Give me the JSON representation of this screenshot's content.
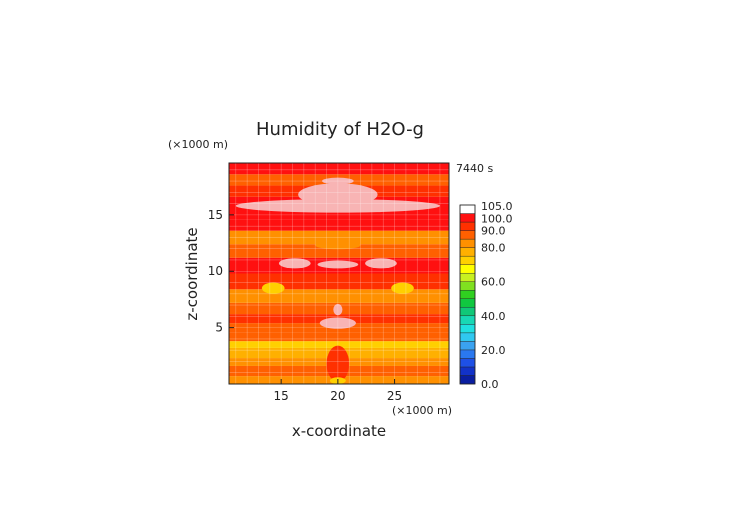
{
  "chart_data": {
    "type": "heatmap",
    "title": "Humidity of H2O-g",
    "xlabel": "x-coordinate",
    "ylabel": "z-coordinate",
    "x_unit_label": "(×1000 m)",
    "y_unit_label": "(×1000 m)",
    "time_label": "7440 s",
    "xlim": [
      10.4,
      29.8
    ],
    "ylim": [
      0.0,
      19.6
    ],
    "x_ticks": [
      15,
      20,
      25
    ],
    "x_tick_labels": [
      "15",
      "20",
      "25"
    ],
    "y_ticks": [
      5,
      10,
      15
    ],
    "y_tick_labels": [
      "5",
      "10",
      "15"
    ],
    "grid": true,
    "colorbar": {
      "levels": [
        0,
        5,
        10,
        15,
        20,
        25,
        30,
        35,
        40,
        45,
        50,
        55,
        60,
        65,
        70,
        75,
        80,
        85,
        90,
        95,
        100,
        105
      ],
      "labels": [
        {
          "value": 0,
          "text": "0.0"
        },
        {
          "value": 20,
          "text": "20.0"
        },
        {
          "value": 40,
          "text": "40.0"
        },
        {
          "value": 60,
          "text": "60.0"
        },
        {
          "value": 80,
          "text": "80.0"
        },
        {
          "value": 90,
          "text": "90.0"
        },
        {
          "value": 100,
          "text": "100.0"
        },
        {
          "value": 105,
          "text": "105.0"
        }
      ],
      "colors": [
        "#0a1ea0",
        "#1232c8",
        "#1e50e6",
        "#2a78f0",
        "#3aa2f0",
        "#30c8f0",
        "#20e0e0",
        "#18d8b4",
        "#10c878",
        "#10c840",
        "#30d020",
        "#80e020",
        "#c8f020",
        "#ffff00",
        "#ffd000",
        "#ffb000",
        "#ff9000",
        "#ff6000",
        "#ff3000",
        "#ff1010",
        "#ffffff"
      ]
    },
    "field_bands": [
      {
        "z": [
          0.0,
          0.7
        ],
        "humidity": 82
      },
      {
        "z": [
          0.7,
          1.6
        ],
        "humidity": 86
      },
      {
        "z": [
          1.6,
          2.3
        ],
        "humidity": 84
      },
      {
        "z": [
          2.3,
          3.2
        ],
        "humidity": 78
      },
      {
        "z": [
          3.2,
          3.8
        ],
        "humidity": 73
      },
      {
        "z": [
          3.8,
          4.6
        ],
        "humidity": 86
      },
      {
        "z": [
          4.6,
          5.4
        ],
        "humidity": 89
      },
      {
        "z": [
          5.4,
          6.2
        ],
        "humidity": 94
      },
      {
        "z": [
          6.2,
          7.2
        ],
        "humidity": 88
      },
      {
        "z": [
          7.2,
          8.4
        ],
        "humidity": 84
      },
      {
        "z": [
          8.4,
          9.8
        ],
        "humidity": 93
      },
      {
        "z": [
          9.8,
          11.2
        ],
        "humidity": 98
      },
      {
        "z": [
          11.2,
          12.4
        ],
        "humidity": 89
      },
      {
        "z": [
          12.4,
          13.6
        ],
        "humidity": 84
      },
      {
        "z": [
          13.6,
          14.6
        ],
        "humidity": 96
      },
      {
        "z": [
          14.6,
          16.6
        ],
        "humidity": 97
      },
      {
        "z": [
          16.6,
          17.6
        ],
        "humidity": 92
      },
      {
        "z": [
          17.6,
          18.6
        ],
        "humidity": 86
      },
      {
        "z": [
          18.6,
          19.6
        ],
        "humidity": 95
      }
    ],
    "field_patches": [
      {
        "shape": "ellipse",
        "center": [
          20.0,
          15.8
        ],
        "radius": [
          9.0,
          0.6
        ],
        "humidity": 102
      },
      {
        "shape": "ellipse",
        "center": [
          20.0,
          16.8
        ],
        "radius": [
          3.5,
          1.0
        ],
        "humidity": 101
      },
      {
        "shape": "ellipse",
        "center": [
          20.0,
          10.6
        ],
        "radius": [
          1.8,
          0.35
        ],
        "humidity": 101
      },
      {
        "shape": "ellipse",
        "center": [
          16.2,
          10.7
        ],
        "radius": [
          1.4,
          0.45
        ],
        "humidity": 101
      },
      {
        "shape": "ellipse",
        "center": [
          23.8,
          10.7
        ],
        "radius": [
          1.4,
          0.45
        ],
        "humidity": 101
      },
      {
        "shape": "ellipse",
        "center": [
          20.0,
          5.4
        ],
        "radius": [
          1.6,
          0.5
        ],
        "humidity": 101
      },
      {
        "shape": "ellipse",
        "center": [
          20.0,
          6.6
        ],
        "radius": [
          0.4,
          0.5
        ],
        "humidity": 101
      },
      {
        "shape": "ellipse",
        "center": [
          20.0,
          18.0
        ],
        "radius": [
          1.4,
          0.3
        ],
        "humidity": 101
      },
      {
        "shape": "ellipse",
        "center": [
          14.3,
          8.5
        ],
        "radius": [
          1.0,
          0.5
        ],
        "humidity": 74
      },
      {
        "shape": "ellipse",
        "center": [
          25.7,
          8.5
        ],
        "radius": [
          1.0,
          0.5
        ],
        "humidity": 74
      },
      {
        "shape": "ellipse",
        "center": [
          20.0,
          12.3
        ],
        "radius": [
          2.0,
          0.35
        ],
        "humidity": 80
      },
      {
        "shape": "ellipse",
        "center": [
          20.0,
          1.8
        ],
        "radius": [
          1.0,
          1.6
        ],
        "humidity": 90
      },
      {
        "shape": "ellipse",
        "center": [
          20.0,
          0.3
        ],
        "radius": [
          0.7,
          0.3
        ],
        "humidity": 72
      }
    ]
  }
}
